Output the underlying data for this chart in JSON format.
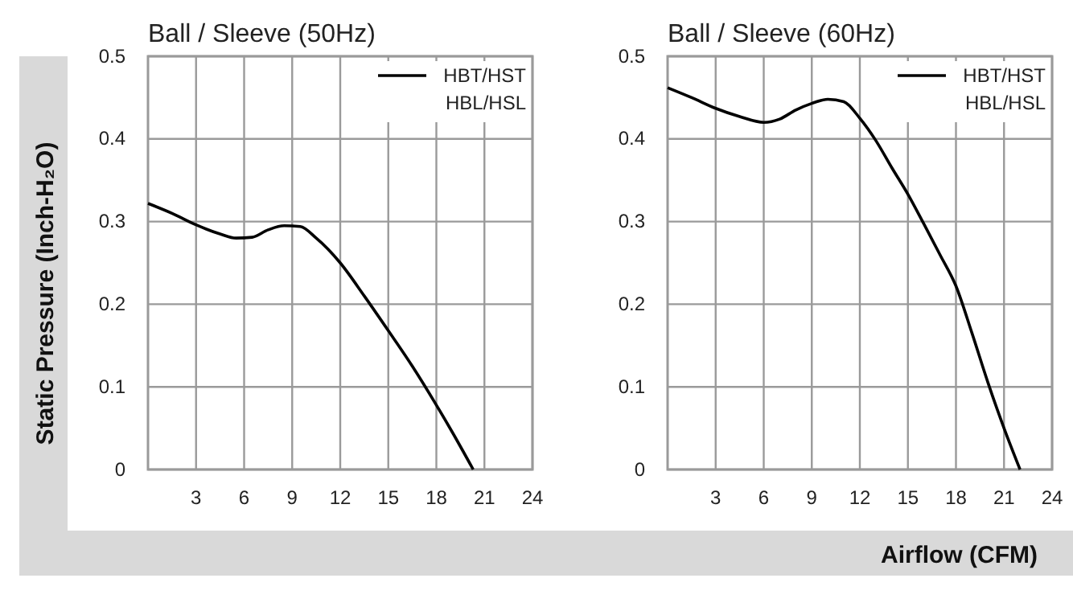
{
  "chart_data": [
    {
      "type": "line",
      "title": "Ball / Sleeve (50Hz)",
      "ylabel": "Static Pressure (Inch-H₂O)",
      "xlim": [
        0,
        24
      ],
      "xticks": [
        3,
        6,
        9,
        12,
        15,
        18,
        21,
        24
      ],
      "ylim": [
        0,
        0.5
      ],
      "yticks": [
        0,
        0.1,
        0.2,
        0.3,
        0.4,
        0.5
      ],
      "grid": true,
      "legend": "top right",
      "marker": "none",
      "line_style": "solid",
      "series": [
        {
          "name": "HBT/HST HBL/HSL",
          "color": "#000000",
          "x": [
            0,
            1.5,
            3,
            4.5,
            5.5,
            6.5,
            7.5,
            8.5,
            9.5,
            10.5,
            12,
            13.5,
            15,
            16.5,
            18,
            19,
            20.3
          ],
          "values": [
            0.322,
            0.31,
            0.296,
            0.285,
            0.28,
            0.281,
            0.29,
            0.295,
            0.294,
            0.28,
            0.25,
            0.21,
            0.168,
            0.125,
            0.078,
            0.045,
            0
          ]
        }
      ]
    },
    {
      "type": "line",
      "title": "Ball / Sleeve (60Hz)",
      "xlabel": "Airflow (CFM)",
      "xlim": [
        0,
        24
      ],
      "xticks": [
        3,
        6,
        9,
        12,
        15,
        18,
        21,
        24
      ],
      "ylim": [
        0,
        0.5
      ],
      "yticks": [
        0,
        0.1,
        0.2,
        0.3,
        0.4,
        0.5
      ],
      "grid": true,
      "legend": "top right",
      "marker": "none",
      "line_style": "solid",
      "series": [
        {
          "name": "HBT/HST HBL/HSL",
          "color": "#000000",
          "x": [
            0,
            1.5,
            3,
            4.5,
            6,
            7,
            8,
            9,
            10,
            11,
            12,
            13,
            14,
            15,
            16,
            17,
            18,
            19,
            20,
            21,
            22
          ],
          "values": [
            0.462,
            0.45,
            0.437,
            0.427,
            0.42,
            0.424,
            0.435,
            0.443,
            0.448,
            0.445,
            0.425,
            0.398,
            0.365,
            0.333,
            0.297,
            0.26,
            0.222,
            0.165,
            0.105,
            0.05,
            0
          ]
        }
      ]
    }
  ]
}
